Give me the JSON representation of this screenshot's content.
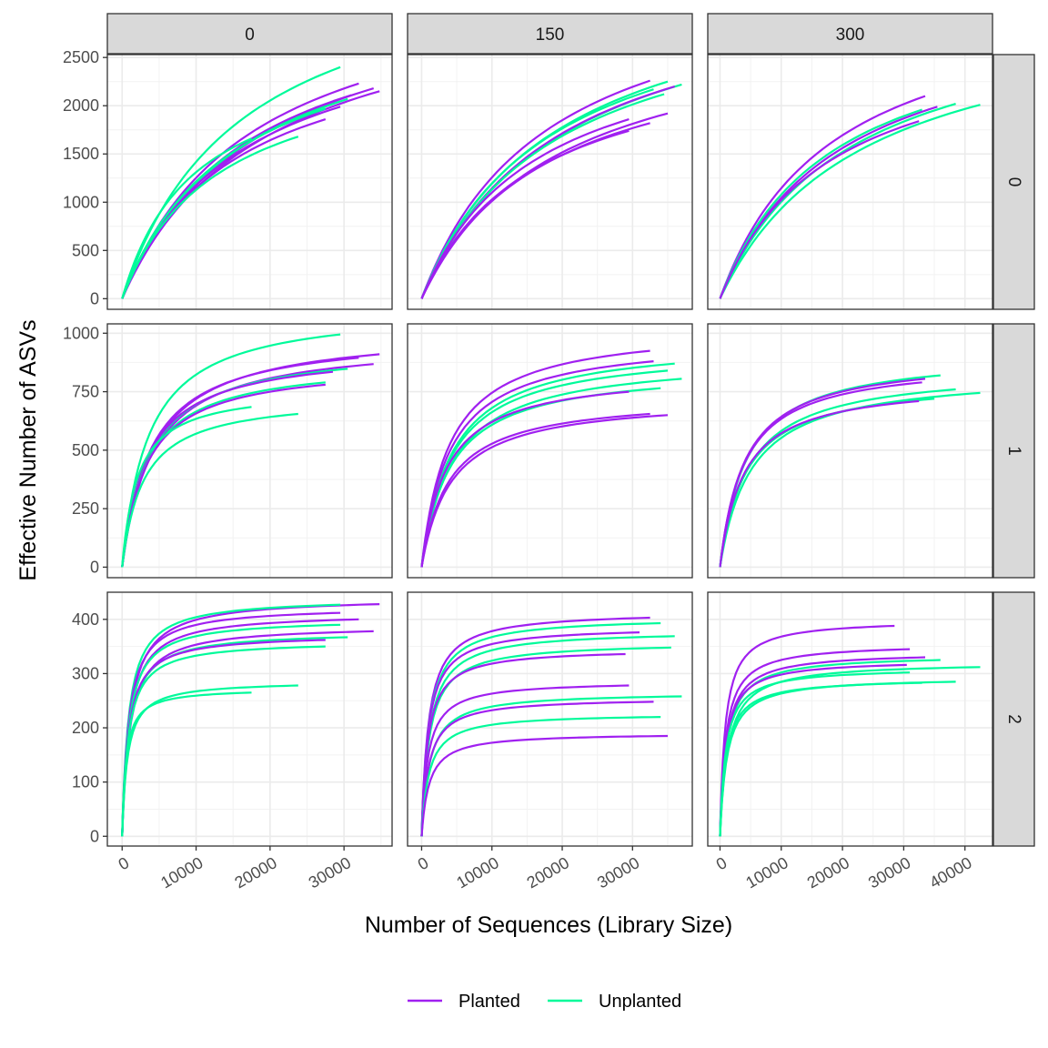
{
  "chart_data": {
    "type": "line",
    "kind": "faceted rarefaction curves",
    "xlabel": "Number of Sequences (Library Size)",
    "ylabel": "Effective Number of ASVs",
    "col_facets": [
      "0",
      "150",
      "300"
    ],
    "row_facets": [
      "0",
      "1",
      "2"
    ],
    "legend": {
      "position": "bottom",
      "entries": [
        {
          "label": "Planted",
          "color": "#A020F0"
        },
        {
          "label": "Unplanted",
          "color": "#00FA9A"
        }
      ]
    },
    "x_axes": [
      {
        "lim": [
          -2000,
          36500
        ],
        "ticks": [
          0,
          10000,
          20000,
          30000
        ]
      },
      {
        "lim": [
          -2000,
          38500
        ],
        "ticks": [
          0,
          10000,
          20000,
          30000
        ]
      },
      {
        "lim": [
          -2000,
          44500
        ],
        "ticks": [
          0,
          10000,
          20000,
          30000,
          40000
        ]
      }
    ],
    "y_axes": [
      {
        "lim": [
          -110,
          2530
        ],
        "ticks": [
          0,
          500,
          1000,
          1500,
          2000,
          2500
        ]
      },
      {
        "lim": [
          -45,
          1040
        ],
        "ticks": [
          0,
          250,
          500,
          750,
          1000
        ]
      },
      {
        "lim": [
          -18,
          450
        ],
        "ticks": [
          0,
          100,
          200,
          300,
          400
        ]
      }
    ],
    "grid": true,
    "panels": [
      {
        "row": "0",
        "col": "0",
        "curves": [
          {
            "group": "Unplanted",
            "end_x": 29500,
            "end_y": 2400
          },
          {
            "group": "Planted",
            "end_x": 32000,
            "end_y": 2230
          },
          {
            "group": "Planted",
            "end_x": 34000,
            "end_y": 2180
          },
          {
            "group": "Planted",
            "end_x": 34800,
            "end_y": 2150
          },
          {
            "group": "Planted",
            "end_x": 31000,
            "end_y": 2110
          },
          {
            "group": "Unplanted",
            "end_x": 30500,
            "end_y": 2070
          },
          {
            "group": "Planted",
            "end_x": 29500,
            "end_y": 1990
          },
          {
            "group": "Unplanted",
            "end_x": 27500,
            "end_y": 1970
          },
          {
            "group": "Planted",
            "end_x": 27500,
            "end_y": 1860
          },
          {
            "group": "Unplanted",
            "end_x": 23800,
            "end_y": 1680
          },
          {
            "group": "Unplanted",
            "end_x": 17500,
            "end_y": 1660
          }
        ]
      },
      {
        "row": "0",
        "col": "150",
        "curves": [
          {
            "group": "Planted",
            "end_x": 32500,
            "end_y": 2260
          },
          {
            "group": "Unplanted",
            "end_x": 35000,
            "end_y": 2250
          },
          {
            "group": "Unplanted",
            "end_x": 37000,
            "end_y": 2220
          },
          {
            "group": "Planted",
            "end_x": 36000,
            "end_y": 2200
          },
          {
            "group": "Unplanted",
            "end_x": 33000,
            "end_y": 2170
          },
          {
            "group": "Unplanted",
            "end_x": 34500,
            "end_y": 2120
          },
          {
            "group": "Planted",
            "end_x": 35000,
            "end_y": 1920
          },
          {
            "group": "Planted",
            "end_x": 29500,
            "end_y": 1860
          },
          {
            "group": "Planted",
            "end_x": 32500,
            "end_y": 1820
          },
          {
            "group": "Planted",
            "end_x": 29500,
            "end_y": 1740
          }
        ]
      },
      {
        "row": "0",
        "col": "300",
        "curves": [
          {
            "group": "Planted",
            "end_x": 33500,
            "end_y": 2100
          },
          {
            "group": "Unplanted",
            "end_x": 42500,
            "end_y": 2010
          },
          {
            "group": "Unplanted",
            "end_x": 38500,
            "end_y": 2020
          },
          {
            "group": "Planted",
            "end_x": 35500,
            "end_y": 1990
          },
          {
            "group": "Unplanted",
            "end_x": 33000,
            "end_y": 1960
          },
          {
            "group": "Planted",
            "end_x": 32500,
            "end_y": 1840
          }
        ]
      },
      {
        "row": "1",
        "col": "0",
        "curves": [
          {
            "group": "Unplanted",
            "end_x": 29500,
            "end_y": 995
          },
          {
            "group": "Planted",
            "end_x": 34800,
            "end_y": 910
          },
          {
            "group": "Planted",
            "end_x": 32000,
            "end_y": 895
          },
          {
            "group": "Planted",
            "end_x": 34000,
            "end_y": 868
          },
          {
            "group": "Unplanted",
            "end_x": 30500,
            "end_y": 848
          },
          {
            "group": "Planted",
            "end_x": 28500,
            "end_y": 835
          },
          {
            "group": "Unplanted",
            "end_x": 27500,
            "end_y": 790
          },
          {
            "group": "Planted",
            "end_x": 27500,
            "end_y": 780
          },
          {
            "group": "Unplanted",
            "end_x": 17500,
            "end_y": 685
          },
          {
            "group": "Unplanted",
            "end_x": 23800,
            "end_y": 655
          }
        ]
      },
      {
        "row": "1",
        "col": "150",
        "curves": [
          {
            "group": "Planted",
            "end_x": 32500,
            "end_y": 925
          },
          {
            "group": "Unplanted",
            "end_x": 36000,
            "end_y": 870
          },
          {
            "group": "Planted",
            "end_x": 33000,
            "end_y": 880
          },
          {
            "group": "Unplanted",
            "end_x": 35000,
            "end_y": 840
          },
          {
            "group": "Unplanted",
            "end_x": 37000,
            "end_y": 805
          },
          {
            "group": "Unplanted",
            "end_x": 34000,
            "end_y": 765
          },
          {
            "group": "Planted",
            "end_x": 29500,
            "end_y": 750
          },
          {
            "group": "Planted",
            "end_x": 32500,
            "end_y": 655
          },
          {
            "group": "Planted",
            "end_x": 35000,
            "end_y": 650
          }
        ]
      },
      {
        "row": "1",
        "col": "300",
        "curves": [
          {
            "group": "Unplanted",
            "end_x": 36000,
            "end_y": 820
          },
          {
            "group": "Planted",
            "end_x": 33500,
            "end_y": 805
          },
          {
            "group": "Planted",
            "end_x": 33000,
            "end_y": 790
          },
          {
            "group": "Unplanted",
            "end_x": 38500,
            "end_y": 760
          },
          {
            "group": "Unplanted",
            "end_x": 42500,
            "end_y": 745
          },
          {
            "group": "Unplanted",
            "end_x": 35000,
            "end_y": 720
          },
          {
            "group": "Planted",
            "end_x": 32500,
            "end_y": 710
          }
        ]
      },
      {
        "row": "2",
        "col": "0",
        "curves": [
          {
            "group": "Planted",
            "end_x": 34800,
            "end_y": 428
          },
          {
            "group": "Unplanted",
            "end_x": 29500,
            "end_y": 427
          },
          {
            "group": "Planted",
            "end_x": 29500,
            "end_y": 412
          },
          {
            "group": "Planted",
            "end_x": 32000,
            "end_y": 400
          },
          {
            "group": "Unplanted",
            "end_x": 29500,
            "end_y": 390
          },
          {
            "group": "Planted",
            "end_x": 34000,
            "end_y": 378
          },
          {
            "group": "Unplanted",
            "end_x": 30500,
            "end_y": 367
          },
          {
            "group": "Planted",
            "end_x": 27500,
            "end_y": 362
          },
          {
            "group": "Unplanted",
            "end_x": 27500,
            "end_y": 350
          },
          {
            "group": "Unplanted",
            "end_x": 23800,
            "end_y": 278
          },
          {
            "group": "Unplanted",
            "end_x": 17500,
            "end_y": 265
          }
        ]
      },
      {
        "row": "2",
        "col": "150",
        "curves": [
          {
            "group": "Planted",
            "end_x": 32500,
            "end_y": 403
          },
          {
            "group": "Unplanted",
            "end_x": 34000,
            "end_y": 393
          },
          {
            "group": "Planted",
            "end_x": 31000,
            "end_y": 376
          },
          {
            "group": "Unplanted",
            "end_x": 36000,
            "end_y": 369
          },
          {
            "group": "Unplanted",
            "end_x": 35500,
            "end_y": 348
          },
          {
            "group": "Planted",
            "end_x": 29000,
            "end_y": 336
          },
          {
            "group": "Planted",
            "end_x": 29500,
            "end_y": 278
          },
          {
            "group": "Unplanted",
            "end_x": 37000,
            "end_y": 258
          },
          {
            "group": "Planted",
            "end_x": 33000,
            "end_y": 248
          },
          {
            "group": "Unplanted",
            "end_x": 34000,
            "end_y": 220
          },
          {
            "group": "Planted",
            "end_x": 35000,
            "end_y": 185
          }
        ]
      },
      {
        "row": "2",
        "col": "300",
        "curves": [
          {
            "group": "Planted",
            "end_x": 28500,
            "end_y": 388
          },
          {
            "group": "Planted",
            "end_x": 31000,
            "end_y": 345
          },
          {
            "group": "Planted",
            "end_x": 33500,
            "end_y": 330
          },
          {
            "group": "Unplanted",
            "end_x": 36000,
            "end_y": 325
          },
          {
            "group": "Planted",
            "end_x": 30500,
            "end_y": 316
          },
          {
            "group": "Unplanted",
            "end_x": 42500,
            "end_y": 312
          },
          {
            "group": "Unplanted",
            "end_x": 31000,
            "end_y": 302
          },
          {
            "group": "Unplanted",
            "end_x": 38500,
            "end_y": 285
          },
          {
            "group": "Unplanted",
            "end_x": 33000,
            "end_y": 283
          }
        ]
      }
    ]
  }
}
